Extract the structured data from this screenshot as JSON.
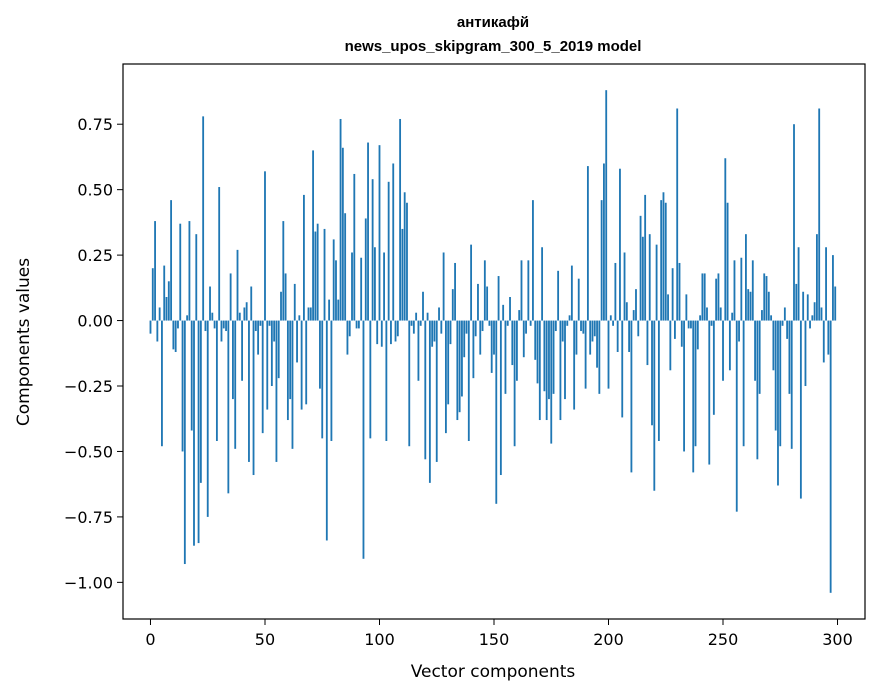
{
  "chart_data": {
    "type": "bar",
    "title": "антикафй",
    "subtitle": "news_upos_skipgram_300_5_2019 model",
    "xlabel": "Vector components",
    "ylabel": "Components values",
    "xlim": [
      -12,
      312
    ],
    "ylim": [
      -1.14,
      0.98
    ],
    "xticks": [
      0,
      50,
      100,
      150,
      200,
      250,
      300
    ],
    "yticks": [
      -1.0,
      -0.75,
      -0.5,
      -0.25,
      0.0,
      0.25,
      0.5,
      0.75
    ],
    "ytick_labels": [
      "−1.00",
      "−0.75",
      "−0.50",
      "−0.25",
      "0.00",
      "0.25",
      "0.50",
      "0.75"
    ],
    "xtick_labels": [
      "0",
      "50",
      "100",
      "150",
      "200",
      "250",
      "300"
    ],
    "bar_color": "#1f77b4",
    "grid": false,
    "values": [
      -0.05,
      0.2,
      0.38,
      -0.08,
      0.05,
      -0.48,
      0.21,
      0.09,
      0.15,
      0.46,
      -0.11,
      -0.12,
      -0.03,
      0.37,
      -0.5,
      -0.93,
      0.02,
      0.38,
      -0.42,
      -0.86,
      0.33,
      -0.85,
      -0.62,
      0.78,
      -0.04,
      -0.75,
      0.13,
      0.03,
      -0.03,
      -0.46,
      0.51,
      -0.08,
      -0.03,
      -0.04,
      -0.66,
      0.18,
      -0.3,
      -0.49,
      0.27,
      0.03,
      -0.23,
      0.05,
      0.07,
      -0.54,
      0.13,
      -0.59,
      -0.04,
      -0.13,
      -0.02,
      -0.43,
      0.57,
      -0.34,
      -0.02,
      -0.25,
      -0.08,
      -0.54,
      -0.22,
      0.11,
      0.38,
      0.18,
      -0.38,
      -0.3,
      -0.49,
      0.14,
      -0.16,
      0.02,
      -0.34,
      0.48,
      -0.32,
      0.05,
      0.05,
      0.65,
      0.34,
      0.37,
      -0.26,
      -0.45,
      0.35,
      -0.84,
      0.08,
      -0.46,
      0.31,
      0.23,
      0.08,
      0.77,
      0.66,
      0.41,
      -0.13,
      -0.06,
      0.26,
      0.56,
      -0.03,
      -0.03,
      0.24,
      -0.91,
      0.39,
      0.68,
      -0.45,
      0.54,
      0.28,
      -0.09,
      0.67,
      -0.1,
      0.26,
      -0.46,
      0.53,
      -0.09,
      0.6,
      -0.08,
      -0.06,
      0.77,
      0.35,
      0.49,
      0.45,
      -0.48,
      -0.02,
      -0.05,
      0.03,
      -0.23,
      -0.02,
      0.11,
      -0.53,
      0.03,
      -0.62,
      -0.1,
      -0.08,
      -0.54,
      0.05,
      -0.05,
      0.26,
      -0.43,
      -0.32,
      -0.09,
      0.12,
      0.22,
      -0.38,
      -0.35,
      -0.29,
      -0.14,
      -0.05,
      -0.46,
      0.29,
      -0.22,
      -0.06,
      0.14,
      -0.13,
      -0.04,
      0.23,
      0.13,
      -0.02,
      -0.2,
      -0.13,
      -0.7,
      0.17,
      -0.59,
      0.06,
      -0.28,
      -0.02,
      0.09,
      -0.17,
      -0.48,
      -0.23,
      0.04,
      0.23,
      -0.14,
      -0.05,
      0.23,
      -0.02,
      0.46,
      -0.15,
      -0.24,
      -0.38,
      0.28,
      -0.27,
      -0.38,
      -0.3,
      -0.47,
      -0.28,
      -0.04,
      0.19,
      -0.38,
      -0.08,
      -0.3,
      -0.02,
      0.02,
      0.21,
      -0.34,
      -0.13,
      0.16,
      -0.04,
      -0.05,
      -0.26,
      0.59,
      -0.13,
      -0.08,
      -0.06,
      -0.18,
      -0.28,
      0.46,
      0.6,
      0.88,
      -0.26,
      0.02,
      -0.02,
      0.22,
      -0.12,
      0.58,
      -0.37,
      0.26,
      0.07,
      -0.12,
      -0.58,
      0.04,
      0.12,
      -0.06,
      0.4,
      0.32,
      0.48,
      -0.17,
      0.33,
      -0.4,
      -0.65,
      0.29,
      -0.46,
      0.46,
      0.49,
      0.45,
      0.1,
      -0.19,
      0.2,
      -0.07,
      0.81,
      0.22,
      -0.1,
      -0.5,
      0.1,
      -0.03,
      -0.03,
      -0.58,
      -0.48,
      -0.11,
      0.02,
      0.18,
      0.18,
      0.05,
      -0.55,
      -0.02,
      -0.36,
      0.16,
      0.18,
      0.05,
      -0.23,
      0.62,
      0.45,
      -0.19,
      0.03,
      0.23,
      -0.73,
      -0.08,
      0.24,
      -0.48,
      0.33,
      0.12,
      0.11,
      0.23,
      -0.23,
      -0.53,
      -0.28,
      0.04,
      0.18,
      0.17,
      0.11,
      0.02,
      -0.19,
      -0.42,
      -0.63,
      -0.48,
      -0.02,
      0.05,
      -0.07,
      -0.28,
      -0.49,
      0.75,
      0.14,
      0.28,
      -0.68,
      0.11,
      -0.25,
      0.1,
      -0.03,
      0.02,
      0.07,
      0.33,
      0.81,
      0.05,
      -0.16,
      0.28,
      -0.13,
      -1.04,
      0.25,
      0.13
    ]
  }
}
